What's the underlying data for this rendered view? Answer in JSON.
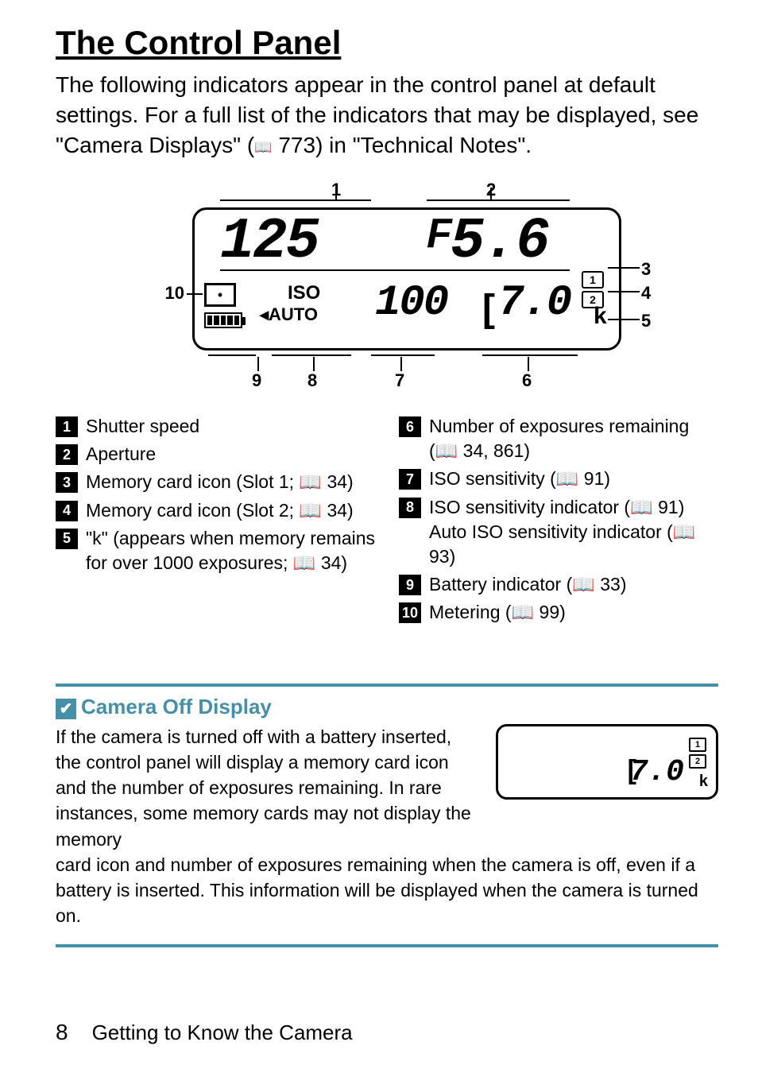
{
  "title": "The Control Panel",
  "intro_lines": [
    "The following indicators appear in the control panel at default settings. For a full list of the indicators that may be displayed, see \"Camera Displays\" (",
    " 773) in \"Technical Notes\"."
  ],
  "diagram": {
    "shutter_speed": "125",
    "aperture_prefix": "F",
    "aperture_value": "5.6",
    "iso_value": "100",
    "remaining": "7.0",
    "k": "k",
    "card1": "1",
    "card2": "2",
    "iso_label": "ISO",
    "auto_label": "AUTO",
    "callouts": {
      "n1": "1",
      "n2": "2",
      "n3": "3",
      "n4": "4",
      "n5": "5",
      "n6": "6",
      "n7": "7",
      "n8": "8",
      "n9": "9",
      "n10": "10"
    }
  },
  "legend_left": [
    {
      "n": "1",
      "t": "Shutter speed"
    },
    {
      "n": "2",
      "t": "Aperture"
    },
    {
      "n": "3",
      "t": "Memory card icon (Slot 1; 📖 34)"
    },
    {
      "n": "4",
      "t": "Memory card icon (Slot 2; 📖 34)"
    },
    {
      "n": "5",
      "t": "\"k\" (appears when memory remains for over 1000 exposures; 📖 34)"
    }
  ],
  "legend_right": [
    {
      "n": "6",
      "t": "Number of exposures remaining (📖 34, 861)"
    },
    {
      "n": "7",
      "t": "ISO sensitivity (📖 91)"
    },
    {
      "n": "8",
      "t": "ISO sensitivity indicator (📖 91) Auto ISO sensitivity indicator (📖 93)"
    },
    {
      "n": "9",
      "t": "Battery indicator (📖 33)"
    },
    {
      "n": "10",
      "t": "Metering (📖 99)"
    }
  ],
  "note": {
    "title": "Camera Off Display",
    "body1": "If the camera is turned off with a battery inserted, the control panel will display a memory card icon and the number of exposures remaining. In rare instances, some memory cards may not display the memory",
    "body2": "card icon and number of exposures remaining when the camera is off, even if a battery is inserted. This information will be displayed when the camera is turned on.",
    "mini": {
      "card1": "1",
      "card2": "2",
      "num": "7.0",
      "k": "k",
      "bracket": "["
    }
  },
  "footer": {
    "page": "8",
    "section": "Getting to Know the Camera"
  }
}
